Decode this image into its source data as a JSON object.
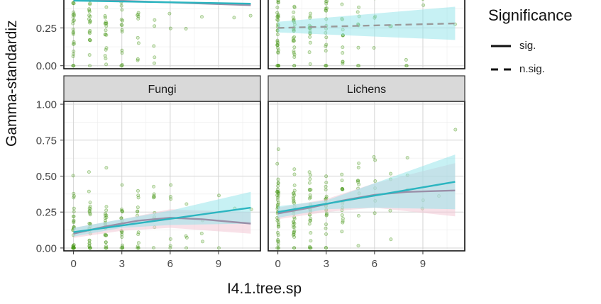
{
  "chart_data": {
    "type": "scatter",
    "xlabel": "I4.1.tree.sp",
    "ylabel": "Gamma-standardiz",
    "xlim": [
      -0.6,
      11.6
    ],
    "ylim": [
      -0.02,
      1.02
    ],
    "x_ticks": [
      0,
      3,
      6,
      9
    ],
    "y_ticks": [
      0.0,
      0.25,
      0.5,
      0.75,
      1.0
    ],
    "y_tick_labels": [
      "0.00",
      "0.25",
      "0.50",
      "0.75",
      "1.00"
    ],
    "grid": true,
    "point_color": "#4f9a1f",
    "fit_color": "#2bb5c0",
    "fit_band_color": "#8fe3ea",
    "gam_color": "#9a8fa8",
    "gam_band_color": "#f2c9d6",
    "legend": {
      "title": "Significance",
      "placement": "right",
      "entries": [
        {
          "label": "sig.",
          "linestyle": "solid"
        },
        {
          "label": "n.sig.",
          "linestyle": "dashed"
        }
      ]
    },
    "panels": [
      {
        "title": "",
        "row": 0,
        "col": 0,
        "partial": true,
        "y_visible": [
          -0.02,
          0.45
        ],
        "significance": "sig.",
        "point_counts": [
          30,
          26,
          24,
          18,
          12,
          8,
          4,
          3,
          2,
          1,
          1,
          1
        ],
        "point_center": [
          0.3,
          0.32,
          0.33,
          0.34,
          0.35,
          0.36,
          0.37,
          0.37,
          0.38,
          0.38,
          0.4,
          0.4
        ],
        "linear_fit": {
          "x": [
            0,
            11
          ],
          "y": [
            0.43,
            0.41
          ]
        },
        "gam_fit": {
          "x": [
            0,
            11
          ],
          "y": [
            0.44,
            0.4
          ]
        }
      },
      {
        "title": "",
        "row": 0,
        "col": 1,
        "partial": true,
        "y_visible": [
          -0.02,
          0.45
        ],
        "significance": "n.sig.",
        "point_counts": [
          40,
          30,
          22,
          20,
          14,
          10,
          6,
          4,
          3,
          2,
          1,
          1
        ],
        "point_center": [
          0.22,
          0.24,
          0.25,
          0.25,
          0.26,
          0.26,
          0.27,
          0.27,
          0.27,
          0.28,
          0.28,
          0.28
        ],
        "linear_fit": {
          "x": [
            0,
            11
          ],
          "y": [
            0.25,
            0.28
          ]
        },
        "linear_band": {
          "x": [
            0,
            11
          ],
          "lower": [
            0.22,
            0.17
          ],
          "upper": [
            0.29,
            0.39
          ]
        }
      },
      {
        "title": "Fungi",
        "row": 1,
        "col": 0,
        "significance": "sig.",
        "point_counts": [
          34,
          28,
          24,
          20,
          14,
          10,
          6,
          4,
          3,
          2,
          1,
          1
        ],
        "point_center": [
          0.12,
          0.14,
          0.15,
          0.17,
          0.18,
          0.19,
          0.2,
          0.21,
          0.22,
          0.24,
          0.26,
          0.27
        ],
        "linear_fit": {
          "x": [
            0,
            11
          ],
          "y": [
            0.11,
            0.28
          ]
        },
        "linear_band": {
          "x": [
            0,
            3,
            6,
            11
          ],
          "lower": [
            0.08,
            0.14,
            0.16,
            0.17
          ],
          "upper": [
            0.14,
            0.2,
            0.26,
            0.39
          ]
        },
        "gam_fit": {
          "x": [
            0,
            2,
            4,
            6,
            8,
            11
          ],
          "y": [
            0.1,
            0.15,
            0.19,
            0.21,
            0.2,
            0.17
          ]
        },
        "gam_band": {
          "x": [
            0,
            3,
            6,
            11
          ],
          "lower": [
            0.07,
            0.12,
            0.14,
            0.1
          ],
          "upper": [
            0.14,
            0.2,
            0.27,
            0.25
          ]
        }
      },
      {
        "title": "Lichens",
        "row": 1,
        "col": 1,
        "significance": "sig.",
        "point_counts": [
          42,
          32,
          26,
          22,
          16,
          10,
          6,
          4,
          3,
          2,
          1,
          1
        ],
        "point_center": [
          0.25,
          0.26,
          0.28,
          0.3,
          0.32,
          0.34,
          0.36,
          0.38,
          0.4,
          0.42,
          0.44,
          0.46
        ],
        "linear_fit": {
          "x": [
            0,
            11
          ],
          "y": [
            0.25,
            0.46
          ]
        },
        "linear_band": {
          "x": [
            0,
            3,
            6,
            11
          ],
          "lower": [
            0.21,
            0.27,
            0.28,
            0.27
          ],
          "upper": [
            0.29,
            0.33,
            0.45,
            0.65
          ]
        },
        "gam_fit": {
          "x": [
            0,
            2,
            4,
            6,
            8,
            11
          ],
          "y": [
            0.24,
            0.28,
            0.33,
            0.37,
            0.39,
            0.4
          ]
        },
        "gam_band": {
          "x": [
            0,
            3,
            6,
            11
          ],
          "lower": [
            0.2,
            0.25,
            0.28,
            0.22
          ],
          "upper": [
            0.28,
            0.34,
            0.45,
            0.59
          ]
        }
      }
    ]
  }
}
